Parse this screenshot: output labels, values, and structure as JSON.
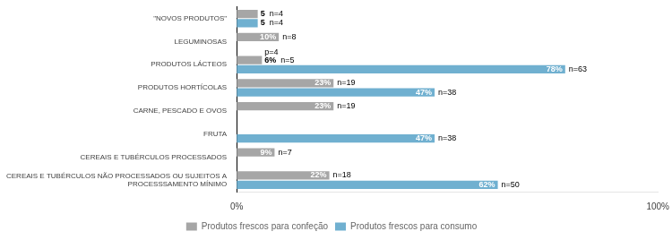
{
  "chart_data": {
    "type": "bar",
    "orientation": "horizontal",
    "categories": [
      "CEREAIS E TUBÉRCULOS NÃO PROCESSADOS OU SUJEITOS A\nPROCESSSAMENTO MÍNIMO",
      "CEREAIS E TUBÉRCULOS PROCESSADOS",
      "FRUTA",
      "CARNE, PESCADO E OVOS",
      "PRODUTOS HORTÍCOLAS",
      "PRODUTOS LÁCTEOS",
      "LEGUMINOSAS",
      "\"NOVOS PRODUTOS\""
    ],
    "series": [
      {
        "name": "Produtos frescos para confeção",
        "color": "#a6a6a6",
        "values": [
          22,
          9,
          0,
          23,
          23,
          6,
          10,
          5
        ],
        "value_labels": [
          "22%",
          "9%",
          null,
          "23%",
          "23%",
          "6%",
          "10%",
          "5"
        ],
        "n_labels": [
          "n=18",
          "n=7",
          null,
          "n=19",
          "n=19",
          "n=5",
          "n=8",
          "n=4"
        ]
      },
      {
        "name": "Produtos frescos para consumo",
        "color": "#70b0d0",
        "values": [
          62,
          0,
          47,
          0,
          47,
          78,
          0,
          5
        ],
        "value_labels": [
          "62%",
          null,
          "47%",
          null,
          "47%",
          "78%",
          null,
          "5"
        ],
        "n_labels": [
          "n=50",
          null,
          "n=38",
          null,
          "n=38",
          "n=63",
          null,
          "n=4"
        ]
      }
    ],
    "annotations": [
      {
        "text": "p=4",
        "category": "PRODUTOS LÁCTEOS",
        "series": "Produtos frescos para confeção"
      }
    ],
    "xlim": [
      0,
      100
    ],
    "xticks": [
      {
        "value": 0,
        "label": "0%"
      },
      {
        "value": 100,
        "label": "100%"
      }
    ],
    "grid": false,
    "legend": "bottom",
    "data_labels": true
  }
}
